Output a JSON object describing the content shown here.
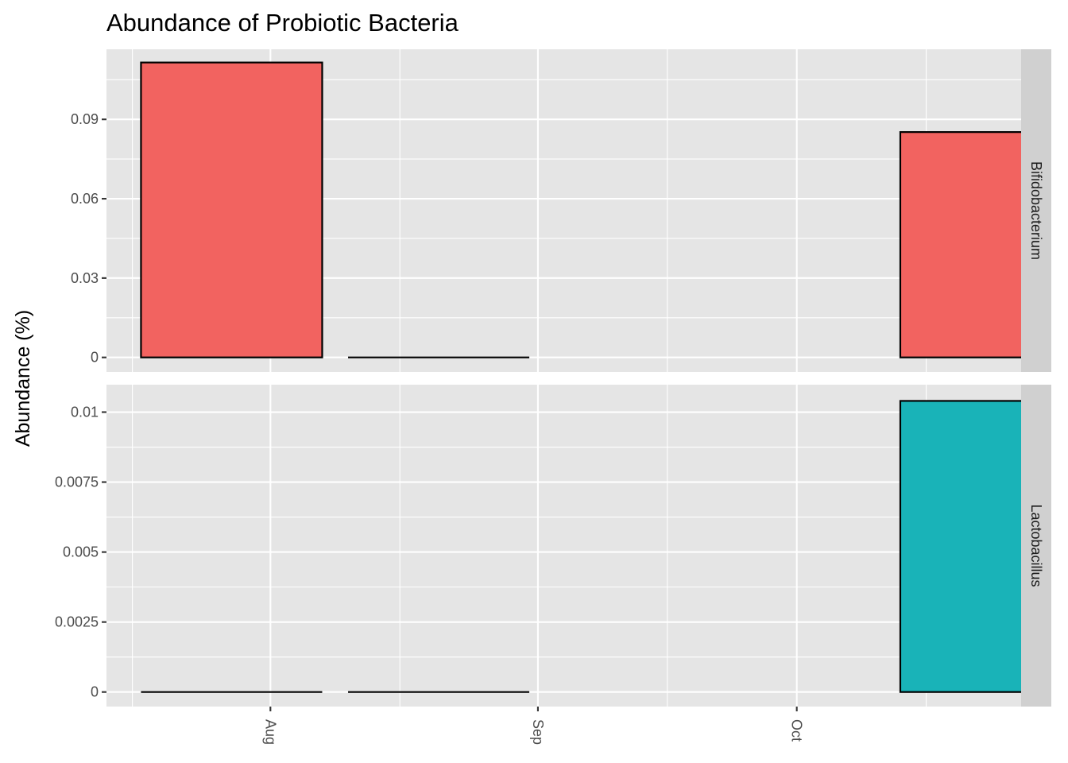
{
  "chart_data": {
    "type": "bar",
    "title": "Abundance of Probiotic Bacteria",
    "ylabel": "Abundance (%)",
    "xlabel": "",
    "x_ticks": [
      "Aug",
      "Sep",
      "Oct"
    ],
    "x_domain": [
      "2023-07-13",
      "2023-10-27"
    ],
    "grid": true,
    "facets": [
      {
        "name": "Bifidobacterium",
        "fill": "#F26360",
        "ylim": [
          -0.0055,
          0.1165
        ],
        "yticks": [
          0,
          0.03,
          0.06,
          0.09
        ],
        "ytick_labels": [
          "0",
          "0.03",
          "0.06",
          "0.09"
        ],
        "bars": [
          {
            "start": "2023-07-17",
            "end": "2023-08-07",
            "value": 0.1115
          },
          {
            "start": "2023-08-10",
            "end": "2023-08-31",
            "value": 0
          },
          {
            "start": "2023-10-13",
            "end": "2023-11-03",
            "value": 0.0852
          }
        ]
      },
      {
        "name": "Lactobacillus",
        "fill": "#19B3B8",
        "ylim": [
          -0.00052,
          0.01098
        ],
        "yticks": [
          0,
          0.0025,
          0.005,
          0.0075,
          0.01
        ],
        "ytick_labels": [
          "0",
          "0.0025",
          "0.005",
          "0.0075",
          "0.01"
        ],
        "bars": [
          {
            "start": "2023-07-17",
            "end": "2023-08-07",
            "value": 0
          },
          {
            "start": "2023-08-10",
            "end": "2023-08-31",
            "value": 0
          },
          {
            "start": "2023-10-13",
            "end": "2023-11-03",
            "value": 0.0104
          }
        ]
      }
    ]
  }
}
